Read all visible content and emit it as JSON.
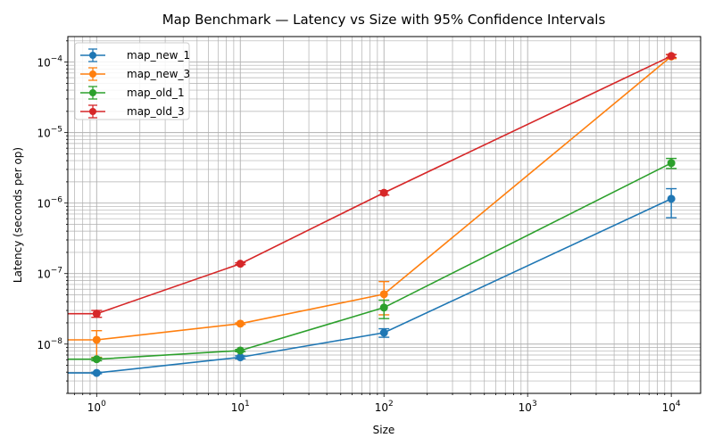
{
  "chart_data": {
    "type": "line",
    "title": "Map Benchmark — Latency vs Size with 95% Confidence Intervals",
    "xlabel": "Size",
    "ylabel": "Latency (seconds per op)",
    "xscale": "log",
    "yscale": "log",
    "xlim": [
      0.63,
      16000
    ],
    "ylim": [
      2e-09,
      0.00023
    ],
    "grid": "both (major and minor)",
    "legend": "top-left",
    "x_ticks": [
      {
        "value": 1,
        "base": "10",
        "exp": "0"
      },
      {
        "value": 10,
        "base": "10",
        "exp": "1"
      },
      {
        "value": 100,
        "base": "10",
        "exp": "2"
      },
      {
        "value": 1000,
        "base": "10",
        "exp": "3"
      },
      {
        "value": 10000,
        "base": "10",
        "exp": "4"
      }
    ],
    "y_ticks": [
      {
        "value": 1e-08,
        "base": "10",
        "exp": "−8"
      },
      {
        "value": 1e-07,
        "base": "10",
        "exp": "−7"
      },
      {
        "value": 1e-06,
        "base": "10",
        "exp": "−6"
      },
      {
        "value": 1e-05,
        "base": "10",
        "exp": "−5"
      },
      {
        "value": 0.0001,
        "base": "10",
        "exp": "−4"
      }
    ],
    "series": [
      {
        "name": "map_new_1",
        "color": "#1f77b4",
        "points": [
          {
            "x": 0.63,
            "y": 3.9e-09,
            "err_low": null,
            "err_high": null
          },
          {
            "x": 1,
            "y": 3.9e-09,
            "err_low": 3.8e-09,
            "err_high": 4e-09
          },
          {
            "x": 10,
            "y": 6.5e-09,
            "err_low": 6.2e-09,
            "err_high": 6.8e-09
          },
          {
            "x": 100,
            "y": 1.45e-08,
            "err_low": 1.25e-08,
            "err_high": 1.65e-08
          },
          {
            "x": 10000,
            "y": 1.15e-06,
            "err_low": 6.2e-07,
            "err_high": 1.6e-06
          }
        ]
      },
      {
        "name": "map_new_3",
        "color": "#ff7f0e",
        "points": [
          {
            "x": 0.63,
            "y": 1.15e-08,
            "err_low": null,
            "err_high": null
          },
          {
            "x": 1,
            "y": 1.15e-08,
            "err_low": 6.5e-09,
            "err_high": 1.55e-08
          },
          {
            "x": 10,
            "y": 1.95e-08,
            "err_low": 1.9e-08,
            "err_high": 2e-08
          },
          {
            "x": 100,
            "y": 5.1e-08,
            "err_low": 2.6e-08,
            "err_high": 7.7e-08
          },
          {
            "x": 10000,
            "y": 0.00012,
            "err_low": 0.000112,
            "err_high": 0.000128
          }
        ]
      },
      {
        "name": "map_old_1",
        "color": "#2ca02c",
        "points": [
          {
            "x": 0.63,
            "y": 6.1e-09,
            "err_low": null,
            "err_high": null
          },
          {
            "x": 1,
            "y": 6.1e-09,
            "err_low": 5.8e-09,
            "err_high": 6.4e-09
          },
          {
            "x": 10,
            "y": 8.1e-09,
            "err_low": 7.8e-09,
            "err_high": 8.4e-09
          },
          {
            "x": 100,
            "y": 3.3e-08,
            "err_low": 2.3e-08,
            "err_high": 4.2e-08
          },
          {
            "x": 10000,
            "y": 3.7e-06,
            "err_low": 3.1e-06,
            "err_high": 4.3e-06
          }
        ]
      },
      {
        "name": "map_old_3",
        "color": "#d62728",
        "points": [
          {
            "x": 0.63,
            "y": 2.7e-08,
            "err_low": null,
            "err_high": null
          },
          {
            "x": 1,
            "y": 2.7e-08,
            "err_low": 2.4e-08,
            "err_high": 3e-08
          },
          {
            "x": 10,
            "y": 1.38e-07,
            "err_low": 1.34e-07,
            "err_high": 1.42e-07
          },
          {
            "x": 100,
            "y": 1.4e-06,
            "err_low": 1.3e-06,
            "err_high": 1.5e-06
          },
          {
            "x": 10000,
            "y": 0.000122,
            "err_low": 0.000116,
            "err_high": 0.000128
          }
        ]
      }
    ]
  }
}
